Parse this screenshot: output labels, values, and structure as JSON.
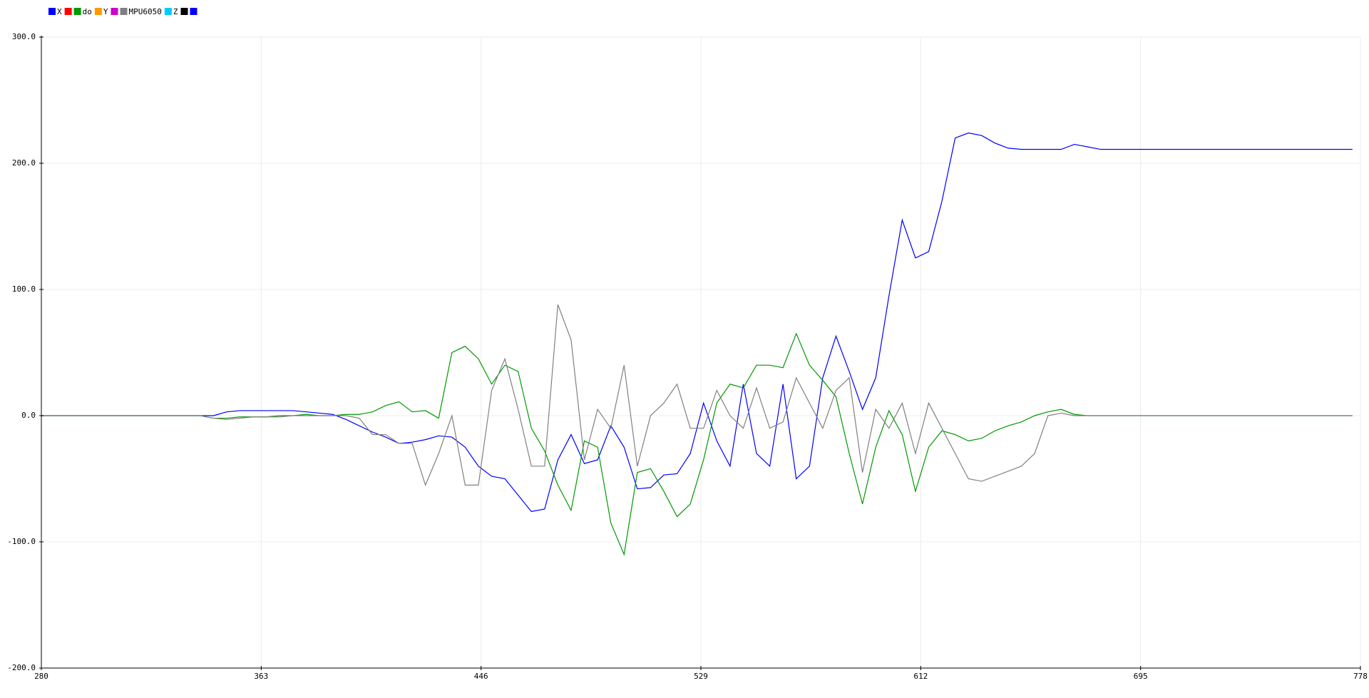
{
  "chart_data": {
    "type": "line",
    "legend": [
      {
        "color": "#0000ff",
        "label": "X"
      },
      {
        "color": "#ff0000",
        "label": null
      },
      {
        "color": "#009900",
        "label": "do"
      },
      {
        "color": "#ff9900",
        "label": "Y"
      },
      {
        "color": "#cc00cc",
        "label": null
      },
      {
        "color": "#808080",
        "label": "MPU6050"
      },
      {
        "color": "#00ccff",
        "label": "Z"
      },
      {
        "color": "#000000",
        "label": null
      },
      {
        "color": "#0000ff",
        "label": null
      }
    ],
    "x": [
      280,
      285,
      290,
      295,
      300,
      305,
      310,
      315,
      320,
      325,
      330,
      335,
      340,
      345,
      350,
      355,
      360,
      365,
      370,
      375,
      380,
      385,
      390,
      395,
      400,
      405,
      410,
      415,
      420,
      425,
      430,
      435,
      440,
      445,
      450,
      455,
      460,
      465,
      470,
      475,
      480,
      485,
      490,
      495,
      500,
      505,
      510,
      515,
      520,
      525,
      530,
      535,
      540,
      545,
      550,
      555,
      560,
      565,
      570,
      575,
      580,
      585,
      590,
      595,
      600,
      605,
      610,
      615,
      620,
      625,
      630,
      635,
      640,
      645,
      650,
      655,
      660,
      665,
      670,
      675,
      680,
      685,
      690,
      695,
      700,
      705,
      710,
      715,
      720,
      725,
      730,
      735,
      740,
      745,
      750,
      755,
      760,
      765,
      770,
      775
    ],
    "series": [
      {
        "color": "#0000ff",
        "values": [
          0,
          0,
          0,
          0,
          0,
          0,
          0,
          0,
          0,
          0,
          0,
          0,
          0,
          0,
          3,
          4,
          4,
          4,
          4,
          4,
          3,
          2,
          1,
          -3,
          -8,
          -13,
          -17,
          -22,
          -21,
          -19,
          -16,
          -17,
          -25,
          -40,
          -48,
          -50,
          -63,
          -76,
          -74,
          -35,
          -15,
          -38,
          -35,
          -8,
          -25,
          -58,
          -57,
          -47,
          -46,
          -30,
          10,
          -20,
          -40,
          25,
          -30,
          -40,
          25,
          -50,
          -40,
          30,
          63,
          35,
          5,
          30,
          95,
          155,
          125,
          130,
          170,
          220,
          224,
          222,
          216,
          212,
          211,
          211,
          211,
          211,
          215,
          213,
          211,
          211,
          211,
          211,
          211,
          211,
          211,
          211,
          211,
          211,
          211,
          211,
          211,
          211,
          211,
          211,
          211,
          211,
          211,
          211
        ]
      },
      {
        "color": "#009900",
        "values": [
          0,
          0,
          0,
          0,
          0,
          0,
          0,
          0,
          0,
          0,
          0,
          0,
          0,
          -2,
          -2,
          -1,
          -1,
          -1,
          0,
          0,
          1,
          0,
          0,
          1,
          1,
          3,
          8,
          11,
          3,
          4,
          -2,
          50,
          55,
          45,
          25,
          40,
          35,
          -10,
          -28,
          -55,
          -75,
          -20,
          -25,
          -85,
          -110,
          -45,
          -42,
          -60,
          -80,
          -70,
          -35,
          10,
          25,
          22,
          40,
          40,
          38,
          65,
          40,
          28,
          15,
          -30,
          -70,
          -25,
          4,
          -15,
          -60,
          -25,
          -12,
          -15,
          -20,
          -18,
          -12,
          -8,
          -5,
          0,
          3,
          5,
          1,
          0,
          0,
          0,
          0,
          0,
          0,
          0,
          0,
          0,
          0,
          0,
          0,
          0,
          0,
          0,
          0,
          0,
          0,
          0,
          0,
          0
        ]
      },
      {
        "color": "#808080",
        "values": [
          0,
          0,
          0,
          0,
          0,
          0,
          0,
          0,
          0,
          0,
          0,
          0,
          0,
          -2,
          -3,
          -2,
          -1,
          -1,
          -1,
          0,
          0,
          0,
          0,
          0,
          -2,
          -15,
          -15,
          -22,
          -22,
          -55,
          -30,
          0,
          -55,
          -55,
          20,
          45,
          5,
          -40,
          -40,
          88,
          60,
          -35,
          5,
          -10,
          40,
          -40,
          0,
          10,
          25,
          -10,
          -10,
          20,
          0,
          -10,
          22,
          -10,
          -5,
          30,
          10,
          -10,
          20,
          30,
          -45,
          5,
          -10,
          10,
          -30,
          10,
          -10,
          -30,
          -50,
          -52,
          -48,
          -44,
          -40,
          -30,
          0,
          2,
          0,
          0,
          0,
          0,
          0,
          0,
          0,
          0,
          0,
          0,
          0,
          0,
          0,
          0,
          0,
          0,
          0,
          0,
          0,
          0,
          0,
          0
        ]
      }
    ],
    "xlim": [
      280,
      778
    ],
    "xticks": [
      280,
      363,
      446,
      529,
      612,
      695,
      778
    ],
    "ylim": [
      -200,
      300
    ],
    "yticks": [
      {
        "value": -200,
        "label": "-200.0"
      },
      {
        "value": -100,
        "label": "-100.0"
      },
      {
        "value": 0,
        "label": "0.0"
      },
      {
        "value": 100,
        "label": "100.0"
      },
      {
        "value": 200,
        "label": "200.0"
      },
      {
        "value": 300,
        "label": "300.0"
      }
    ],
    "grid": true
  }
}
